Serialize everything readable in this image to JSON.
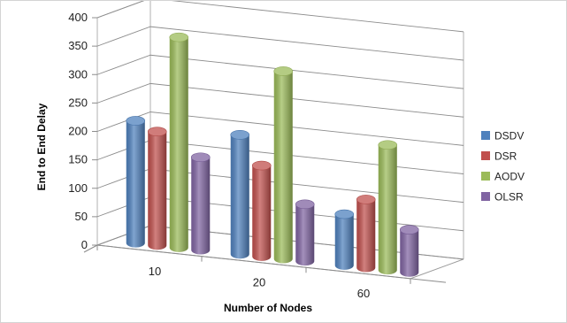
{
  "chart_data": {
    "type": "bar",
    "style": "3d-cylinder",
    "categories": [
      "10",
      "20",
      "60"
    ],
    "series": [
      {
        "name": "DSDV",
        "color": "#4f81bd",
        "values": [
          215,
          210,
          90
        ]
      },
      {
        "name": "DSR",
        "color": "#c0504d",
        "values": [
          200,
          160,
          120
        ]
      },
      {
        "name": "AODV",
        "color": "#9bbb59",
        "values": [
          370,
          330,
          220
        ]
      },
      {
        "name": "OLSR",
        "color": "#8064a2",
        "values": [
          163,
          100,
          75
        ]
      }
    ],
    "title": "",
    "xlabel": "Number of Nodes",
    "ylabel": "End  to End Delay",
    "ylim": [
      0,
      400
    ],
    "yticks": [
      0,
      50,
      100,
      150,
      200,
      250,
      300,
      350,
      400
    ],
    "grid": true,
    "legend": "right"
  }
}
